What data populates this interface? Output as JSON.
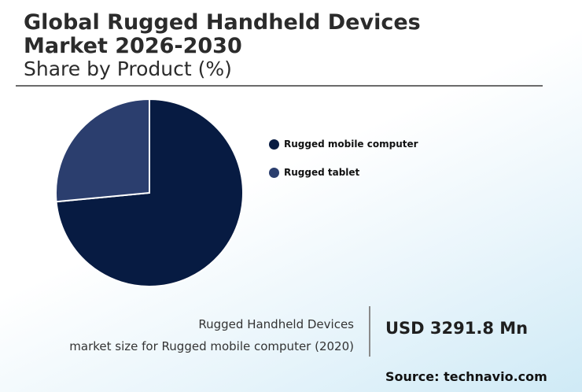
{
  "title_line1": "Global Rugged Handheld Devices",
  "title_line2": "Market 2026-2030",
  "subtitle": "Share by Product (%)",
  "chart_data": {
    "type": "pie",
    "title": "Global Rugged Handheld Devices Market 2026-2030",
    "subtitle": "Share by Product (%)",
    "labels": [
      "Rugged mobile computer",
      "Rugged tablet"
    ],
    "values": [
      73.5,
      26.5
    ],
    "colors": [
      "#071b42",
      "#2b3e6e"
    ],
    "legend_placement": "right"
  },
  "caption_line1": "Rugged Handheld Devices",
  "caption_line2": "market size for Rugged mobile computer (2020)",
  "market_value": "USD 3291.8 Mn",
  "source": "Source: technavio.com"
}
